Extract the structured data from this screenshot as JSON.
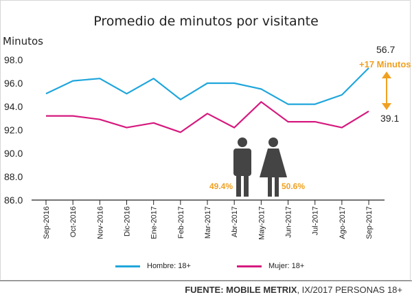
{
  "chart_data": {
    "type": "line",
    "title": "Promedio de minutos por visitante",
    "ylabel": "Minutos",
    "xlabel": "",
    "ylim": [
      86.0,
      98.0
    ],
    "y_ticks": [
      "98.0",
      "96.0",
      "94.0",
      "92.0",
      "90.0",
      "88.0",
      "86.0"
    ],
    "y_tick_values": [
      98,
      96,
      94,
      92,
      90,
      88,
      86
    ],
    "categories": [
      "Sep-2016",
      "Oct-2016",
      "Nov-2016",
      "Dic-2016",
      "Ene-2017",
      "Feb-2017",
      "Mar-2017",
      "Abr-2017",
      "May-2017",
      "Jun-2017",
      "Jul-2017",
      "Ago-2017",
      "Sep-2017"
    ],
    "series": [
      {
        "name": "Hombre: 18+",
        "color": "#1fa6dc",
        "values": [
          95.1,
          96.2,
          96.4,
          95.1,
          96.4,
          94.6,
          96.0,
          96.0,
          95.5,
          94.2,
          94.2,
          95.0,
          97.3
        ]
      },
      {
        "name": "Mujer: 18+",
        "color": "#d6197e",
        "values": [
          93.2,
          93.2,
          92.9,
          92.2,
          92.6,
          91.8,
          93.4,
          92.2,
          94.4,
          92.7,
          92.7,
          92.2,
          93.6
        ]
      }
    ],
    "annotations": {
      "hombre_end": "56.7",
      "mujer_end": "39.1",
      "difference": "+17 Minutos",
      "pct_hombre": "49.4%",
      "pct_mujer": "50.6%"
    },
    "grid": false,
    "legend_position": "bottom"
  },
  "colors": {
    "accent": "#f0a020",
    "text": "#222222"
  },
  "icons": {
    "male": "male-figure-icon",
    "female": "female-figure-icon",
    "arrow": "double-arrow-icon"
  },
  "source": {
    "label": "FUENTE: MOBILE METRIX",
    "detail": ", IX/2017 PERSONAS 18+"
  }
}
